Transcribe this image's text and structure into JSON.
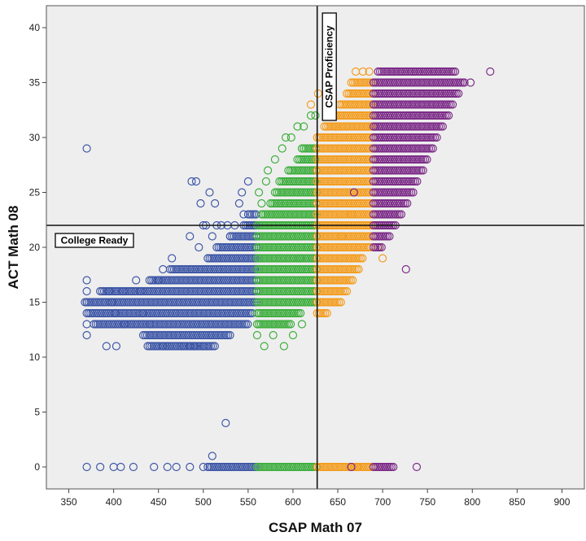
{
  "chart_data": {
    "type": "scatter",
    "title": "",
    "xlabel": "CSAP Math 07",
    "ylabel": "ACT Math 08",
    "xlim": [
      325,
      925
    ],
    "ylim": [
      -2,
      42
    ],
    "x_ticks": [
      350,
      400,
      450,
      500,
      550,
      600,
      650,
      700,
      750,
      800,
      850,
      900
    ],
    "y_ticks": [
      0,
      5,
      10,
      15,
      20,
      25,
      30,
      35,
      40
    ],
    "grid": false,
    "marker": "open-circle",
    "background": "#eeeeee",
    "reference_lines": [
      {
        "orientation": "vertical",
        "x": 627,
        "label": "CSAP Proficiency"
      },
      {
        "orientation": "horizontal",
        "y": 22,
        "label": "College Ready"
      }
    ],
    "series": [
      {
        "color": "#3d56a6",
        "bands": [
          {
            "y": 11,
            "x_from": 438,
            "x_to": 513
          },
          {
            "y": 12,
            "x_from": 433,
            "x_to": 530
          },
          {
            "y": 13,
            "x_from": 378,
            "x_to": 550
          },
          {
            "y": 14,
            "x_from": 372,
            "x_to": 555
          },
          {
            "y": 15,
            "x_from": 368,
            "x_to": 560
          },
          {
            "y": 16,
            "x_from": 385,
            "x_to": 560
          },
          {
            "y": 17,
            "x_from": 440,
            "x_to": 560
          },
          {
            "y": 18,
            "x_from": 463,
            "x_to": 560
          },
          {
            "y": 19,
            "x_from": 505,
            "x_to": 560
          },
          {
            "y": 20,
            "x_from": 515,
            "x_to": 560
          },
          {
            "y": 21,
            "x_from": 530,
            "x_to": 560
          },
          {
            "y": 22,
            "x_from": 545,
            "x_to": 560
          },
          {
            "y": 23,
            "x_from": 550,
            "x_to": 560
          },
          {
            "y": 0,
            "x_from": 505,
            "x_to": 560
          }
        ],
        "points": [
          [
            370,
            0
          ],
          [
            385,
            0
          ],
          [
            400,
            0
          ],
          [
            408,
            0
          ],
          [
            422,
            0
          ],
          [
            445,
            0
          ],
          [
            460,
            0
          ],
          [
            470,
            0
          ],
          [
            485,
            0
          ],
          [
            500,
            0
          ],
          [
            370,
            29
          ],
          [
            370,
            17
          ],
          [
            370,
            16
          ],
          [
            370,
            15
          ],
          [
            370,
            14
          ],
          [
            370,
            13
          ],
          [
            370,
            12
          ],
          [
            392,
            11
          ],
          [
            403,
            11
          ],
          [
            455,
            11
          ],
          [
            460,
            11
          ],
          [
            478,
            11
          ],
          [
            485,
            11
          ],
          [
            490,
            11
          ],
          [
            500,
            11
          ],
          [
            410,
            16
          ],
          [
            420,
            16
          ],
          [
            425,
            17
          ],
          [
            430,
            16
          ],
          [
            450,
            17
          ],
          [
            455,
            18
          ],
          [
            465,
            19
          ],
          [
            433,
            14
          ],
          [
            440,
            13
          ],
          [
            412,
            13
          ],
          [
            402,
            14
          ],
          [
            398,
            15
          ],
          [
            395,
            16
          ],
          [
            530,
            21
          ],
          [
            510,
            21
          ],
          [
            515,
            22
          ],
          [
            520,
            22
          ],
          [
            527,
            22
          ],
          [
            535,
            22
          ],
          [
            545,
            23
          ],
          [
            487,
            26
          ],
          [
            492,
            26
          ],
          [
            497,
            24
          ],
          [
            500,
            22
          ],
          [
            507,
            25
          ],
          [
            513,
            24
          ],
          [
            503,
            22
          ],
          [
            540,
            24
          ],
          [
            550,
            26
          ],
          [
            543,
            25
          ],
          [
            485,
            21
          ],
          [
            495,
            20
          ],
          [
            525,
            4
          ],
          [
            510,
            1
          ]
        ]
      },
      {
        "color": "#3cad3c",
        "bands": [
          {
            "y": 13,
            "x_from": 560,
            "x_to": 598
          },
          {
            "y": 14,
            "x_from": 560,
            "x_to": 610
          },
          {
            "y": 15,
            "x_from": 560,
            "x_to": 627
          },
          {
            "y": 16,
            "x_from": 560,
            "x_to": 627
          },
          {
            "y": 17,
            "x_from": 560,
            "x_to": 627
          },
          {
            "y": 18,
            "x_from": 560,
            "x_to": 627
          },
          {
            "y": 19,
            "x_from": 560,
            "x_to": 627
          },
          {
            "y": 20,
            "x_from": 560,
            "x_to": 627
          },
          {
            "y": 21,
            "x_from": 560,
            "x_to": 627
          },
          {
            "y": 22,
            "x_from": 560,
            "x_to": 627
          },
          {
            "y": 23,
            "x_from": 565,
            "x_to": 627
          },
          {
            "y": 24,
            "x_from": 575,
            "x_to": 627
          },
          {
            "y": 25,
            "x_from": 580,
            "x_to": 627
          },
          {
            "y": 26,
            "x_from": 585,
            "x_to": 627
          },
          {
            "y": 27,
            "x_from": 595,
            "x_to": 627
          },
          {
            "y": 28,
            "x_from": 605,
            "x_to": 627
          },
          {
            "y": 29,
            "x_from": 610,
            "x_to": 627
          },
          {
            "y": 0,
            "x_from": 560,
            "x_to": 627
          }
        ],
        "points": [
          [
            560,
            12
          ],
          [
            568,
            11
          ],
          [
            578,
            12
          ],
          [
            590,
            11
          ],
          [
            600,
            12
          ],
          [
            610,
            13
          ],
          [
            570,
            26
          ],
          [
            572,
            27
          ],
          [
            580,
            28
          ],
          [
            588,
            29
          ],
          [
            592,
            30
          ],
          [
            598,
            30
          ],
          [
            605,
            31
          ],
          [
            612,
            31
          ],
          [
            620,
            32
          ],
          [
            625,
            32
          ],
          [
            565,
            24
          ],
          [
            562,
            25
          ],
          [
            608,
            19
          ]
        ]
      },
      {
        "color": "#f39c1e",
        "bands": [
          {
            "y": 14,
            "x_from": 627,
            "x_to": 640
          },
          {
            "y": 15,
            "x_from": 627,
            "x_to": 655
          },
          {
            "y": 16,
            "x_from": 627,
            "x_to": 662
          },
          {
            "y": 17,
            "x_from": 627,
            "x_to": 668
          },
          {
            "y": 18,
            "x_from": 627,
            "x_to": 675
          },
          {
            "y": 19,
            "x_from": 627,
            "x_to": 678
          },
          {
            "y": 20,
            "x_from": 627,
            "x_to": 688
          },
          {
            "y": 21,
            "x_from": 627,
            "x_to": 690
          },
          {
            "y": 22,
            "x_from": 627,
            "x_to": 690
          },
          {
            "y": 23,
            "x_from": 627,
            "x_to": 690
          },
          {
            "y": 24,
            "x_from": 627,
            "x_to": 690
          },
          {
            "y": 25,
            "x_from": 627,
            "x_to": 690
          },
          {
            "y": 26,
            "x_from": 627,
            "x_to": 690
          },
          {
            "y": 27,
            "x_from": 627,
            "x_to": 690
          },
          {
            "y": 28,
            "x_from": 627,
            "x_to": 690
          },
          {
            "y": 29,
            "x_from": 627,
            "x_to": 690
          },
          {
            "y": 30,
            "x_from": 627,
            "x_to": 690
          },
          {
            "y": 31,
            "x_from": 635,
            "x_to": 690
          },
          {
            "y": 32,
            "x_from": 642,
            "x_to": 690
          },
          {
            "y": 33,
            "x_from": 652,
            "x_to": 690
          },
          {
            "y": 34,
            "x_from": 660,
            "x_to": 690
          },
          {
            "y": 35,
            "x_from": 665,
            "x_to": 690
          },
          {
            "y": 0,
            "x_from": 627,
            "x_to": 690
          }
        ],
        "points": [
          [
            620,
            33
          ],
          [
            628,
            34
          ],
          [
            640,
            33
          ],
          [
            648,
            31
          ],
          [
            668,
            25
          ],
          [
            665,
            23
          ],
          [
            655,
            21
          ],
          [
            695,
            20
          ],
          [
            700,
            19
          ],
          [
            670,
            36
          ],
          [
            678,
            36
          ],
          [
            685,
            36
          ],
          [
            672,
            0
          ]
        ]
      },
      {
        "color": "#7b2a87",
        "bands": [
          {
            "y": 20,
            "x_from": 690,
            "x_to": 700
          },
          {
            "y": 21,
            "x_from": 690,
            "x_to": 708
          },
          {
            "y": 22,
            "x_from": 690,
            "x_to": 715
          },
          {
            "y": 23,
            "x_from": 690,
            "x_to": 722
          },
          {
            "y": 24,
            "x_from": 690,
            "x_to": 728
          },
          {
            "y": 25,
            "x_from": 690,
            "x_to": 735
          },
          {
            "y": 26,
            "x_from": 690,
            "x_to": 740
          },
          {
            "y": 27,
            "x_from": 690,
            "x_to": 745
          },
          {
            "y": 28,
            "x_from": 690,
            "x_to": 750
          },
          {
            "y": 29,
            "x_from": 690,
            "x_to": 758
          },
          {
            "y": 30,
            "x_from": 690,
            "x_to": 762
          },
          {
            "y": 31,
            "x_from": 690,
            "x_to": 768
          },
          {
            "y": 32,
            "x_from": 690,
            "x_to": 775
          },
          {
            "y": 33,
            "x_from": 690,
            "x_to": 780
          },
          {
            "y": 34,
            "x_from": 690,
            "x_to": 785
          },
          {
            "y": 35,
            "x_from": 690,
            "x_to": 792
          },
          {
            "y": 36,
            "x_from": 695,
            "x_to": 782
          },
          {
            "y": 0,
            "x_from": 690,
            "x_to": 712
          }
        ],
        "points": [
          [
            820,
            36
          ],
          [
            798,
            35
          ],
          [
            726,
            18
          ],
          [
            738,
            0
          ],
          [
            668,
            25
          ],
          [
            665,
            0
          ]
        ]
      }
    ]
  }
}
